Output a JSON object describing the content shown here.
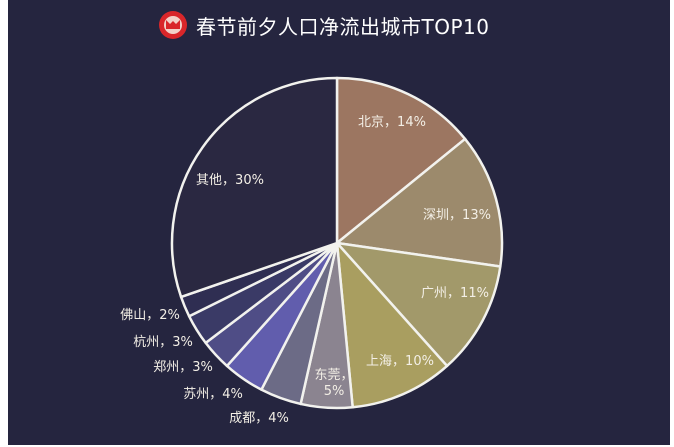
{
  "header": {
    "title": "春节前夕人口净流出城市TOP10",
    "logo_colors": {
      "outer": "#d9262a",
      "inner": "#f3d2c9"
    }
  },
  "chart_data": {
    "type": "pie",
    "title": "春节前夕人口净流出城市TOP10",
    "start_angle_deg": 0,
    "direction": "clockwise",
    "slices": [
      {
        "label": "北京",
        "value": 14,
        "text": "北京，14%",
        "color": "#9c7661"
      },
      {
        "label": "深圳",
        "value": 13,
        "text": "深圳，13%",
        "color": "#9c8a6c"
      },
      {
        "label": "广州",
        "value": 11,
        "text": "广州，11%",
        "color": "#a2996a"
      },
      {
        "label": "上海",
        "value": 10,
        "text": "上海，10%",
        "color": "#a99e60"
      },
      {
        "label": "东莞",
        "value": 5,
        "text": "东莞，\n5%",
        "color": "#8b8490"
      },
      {
        "label": "成都",
        "value": 4,
        "text": "成都，4%",
        "color": "#6c6b86"
      },
      {
        "label": "苏州",
        "value": 4,
        "text": "苏州，4%",
        "color": "#615dad"
      },
      {
        "label": "郑州",
        "value": 3,
        "text": "郑州，3%",
        "color": "#4f4d86"
      },
      {
        "label": "杭州",
        "value": 3,
        "text": "杭州，3%",
        "color": "#3a3a66"
      },
      {
        "label": "佛山",
        "value": 2,
        "text": "佛山，2%",
        "color": "#2f2e52"
      },
      {
        "label": "其他",
        "value": 30,
        "text": "其他，30%",
        "color": "#2a2841"
      }
    ],
    "stroke_color": "#f2f2ee",
    "label_colors": {
      "inside": "#f3efe6",
      "outside": "#f3efe6"
    }
  }
}
